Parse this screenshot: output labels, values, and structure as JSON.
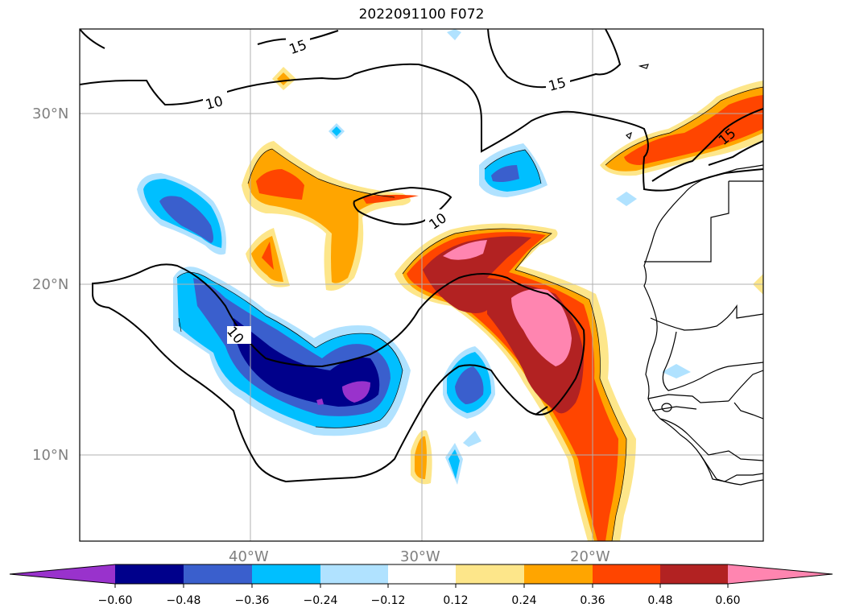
{
  "title": "2022091100 F072",
  "lat_labels": [
    "30°N",
    "20°N",
    "10°N"
  ],
  "lon_labels": [
    "40°W",
    "30°W",
    "20°W"
  ],
  "contour_labels": [
    "15",
    "15",
    "10",
    "10",
    "10",
    "15"
  ],
  "colorbar": {
    "ticks": [
      "−0.60",
      "−0.48",
      "−0.36",
      "−0.24",
      "−0.12",
      "0.12",
      "0.24",
      "0.36",
      "0.48",
      "0.60"
    ],
    "colors": [
      "#9932cc",
      "#00008b",
      "#3a5fcd",
      "#00bfff",
      "#b0e2ff",
      "#ffffff",
      "#fde68a",
      "#ffa500",
      "#ff4500",
      "#b22222",
      "#ff85b0"
    ]
  },
  "fill_colors": {
    "very_neg": "#9932cc",
    "neg_060": "#00008b",
    "neg_048": "#3a5fcd",
    "neg_036": "#00bfff",
    "neg_024": "#b0e2ff",
    "pos_012": "#fde68a",
    "pos_024": "#ffa500",
    "pos_036": "#ff4500",
    "pos_048": "#b22222",
    "pos_060": "#ff85b0"
  }
}
